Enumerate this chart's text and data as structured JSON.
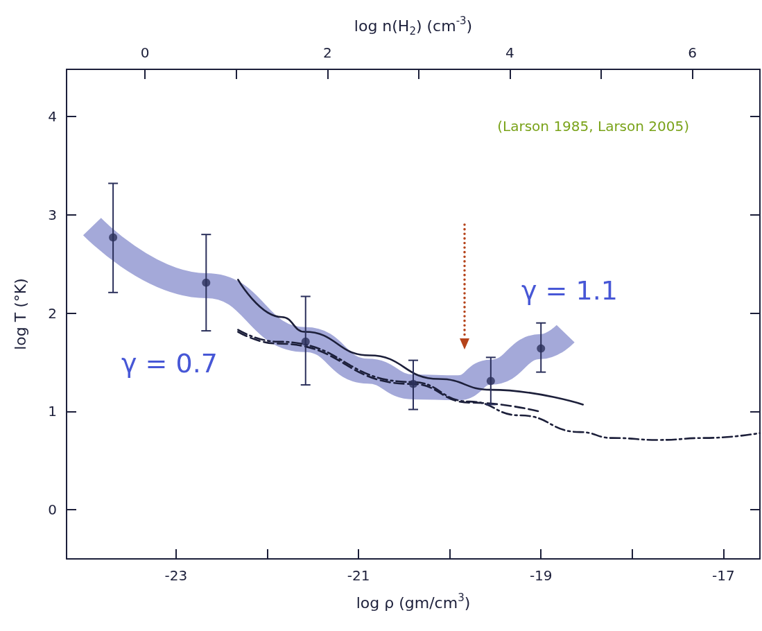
{
  "chart_data": {
    "type": "line",
    "xlabel": "log ρ (gm/cm$^{3}$)",
    "ylabel": "log T (°K)",
    "x2label": "log n(H$_{2}$) (cm$^{-3}$)",
    "xlim": [
      -24.2,
      -16.6
    ],
    "xticks": [
      -23,
      {
        "value": -22,
        "label": null
      },
      -21,
      {
        "value": -20,
        "label": null
      },
      -19,
      {
        "value": -18,
        "label": null
      },
      -17
    ],
    "x2lim": [
      -0.86,
      6.74
    ],
    "x2ticks": [
      0,
      {
        "value": 1,
        "label": null
      },
      2,
      {
        "value": 3,
        "label": null
      },
      4,
      {
        "value": 5,
        "label": null
      },
      6
    ],
    "ylim": [
      -0.5,
      4.48
    ],
    "yticks": [
      0,
      1,
      2,
      3,
      4
    ],
    "grid": false,
    "series": [
      {
        "color": "#a4a9d9",
        "line_style": "solid",
        "x": [
          -23.92,
          -22.67,
          -21.58,
          -20.9,
          -20.4,
          -19.91,
          -19.55,
          -19.0,
          -18.73
        ],
        "values": [
          2.88,
          2.28,
          1.73,
          1.41,
          1.25,
          1.24,
          1.4,
          1.66,
          1.79
        ]
      },
      {
        "color": "#1c1f3a",
        "line_style": "solid",
        "x": [
          -22.32,
          -21.84,
          -21.59,
          -20.88,
          -20.12,
          -19.55,
          -18.54
        ],
        "values": [
          2.34,
          1.96,
          1.81,
          1.57,
          1.33,
          1.22,
          1.07
        ]
      },
      {
        "color": "#1c1f3a",
        "line_style": "dashed",
        "x": [
          -22.32,
          -21.89,
          -20.42,
          -19.78,
          -19.02
        ],
        "values": [
          1.81,
          1.69,
          1.28,
          1.09,
          1.0
        ]
      },
      {
        "color": "#1c1f3a",
        "line_style": "dashdot",
        "x": [
          -22.32,
          -21.89,
          -20.42,
          -19.78,
          -19.23,
          -18.57,
          -18.22,
          -17.71,
          -17.2,
          -16.6
        ],
        "values": [
          1.83,
          1.71,
          1.3,
          1.1,
          0.96,
          0.79,
          0.73,
          0.71,
          0.73,
          0.78
        ]
      },
      {
        "type": "scatter",
        "color": "#2a2f5a",
        "marker": "circle",
        "x": [
          -23.69,
          -22.67,
          -21.58,
          -20.4,
          -19.55,
          -19.0
        ],
        "values": [
          2.77,
          2.31,
          1.71,
          1.28,
          1.31,
          1.64
        ],
        "errors": [
          [
            2.21,
            3.32
          ],
          [
            1.82,
            2.8
          ],
          [
            1.27,
            2.17
          ],
          [
            1.02,
            1.52
          ],
          [
            1.07,
            1.55
          ],
          [
            1.4,
            1.9
          ]
        ]
      }
    ],
    "annotations": [
      "(Larson 1985, Larson 2005)",
      "γ = 0.7",
      "γ = 1.1"
    ]
  }
}
